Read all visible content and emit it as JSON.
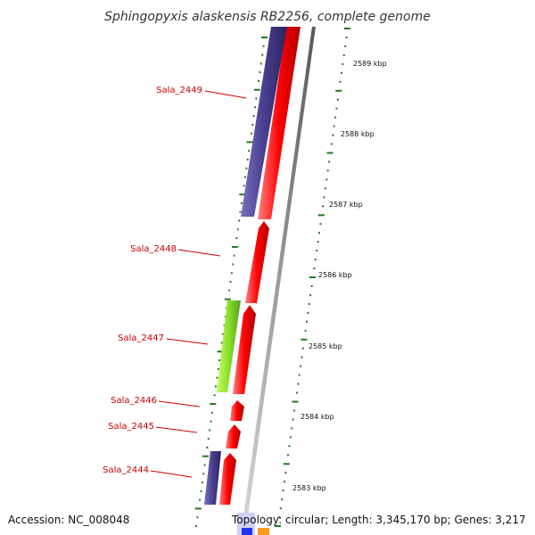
{
  "title": "Sphingopyxis alaskensis RB2256, complete genome",
  "footer": {
    "accession": "Accession: NC_008048",
    "topology": "Topology: circular; Length: 3,345,170 bp; Genes: 3,217"
  },
  "kbp_ticks": [
    "2589 kbp",
    "2588 kbp",
    "2587 kbp",
    "2586 kbp",
    "2585 kbp",
    "2584 kbp",
    "2583 kbp"
  ],
  "gene_labels": [
    "Sala_2449",
    "Sala_2448",
    "Sala_2447",
    "Sala_2446",
    "Sala_2445",
    "Sala_2444"
  ],
  "colors": {
    "forward_gene": "#ff0000",
    "reverse_gene": "#4a3f8f",
    "other_gene": "#88e02a",
    "label": "#cc0000",
    "tick": "#1f7a1f",
    "backbone": "#8c8c8c"
  }
}
